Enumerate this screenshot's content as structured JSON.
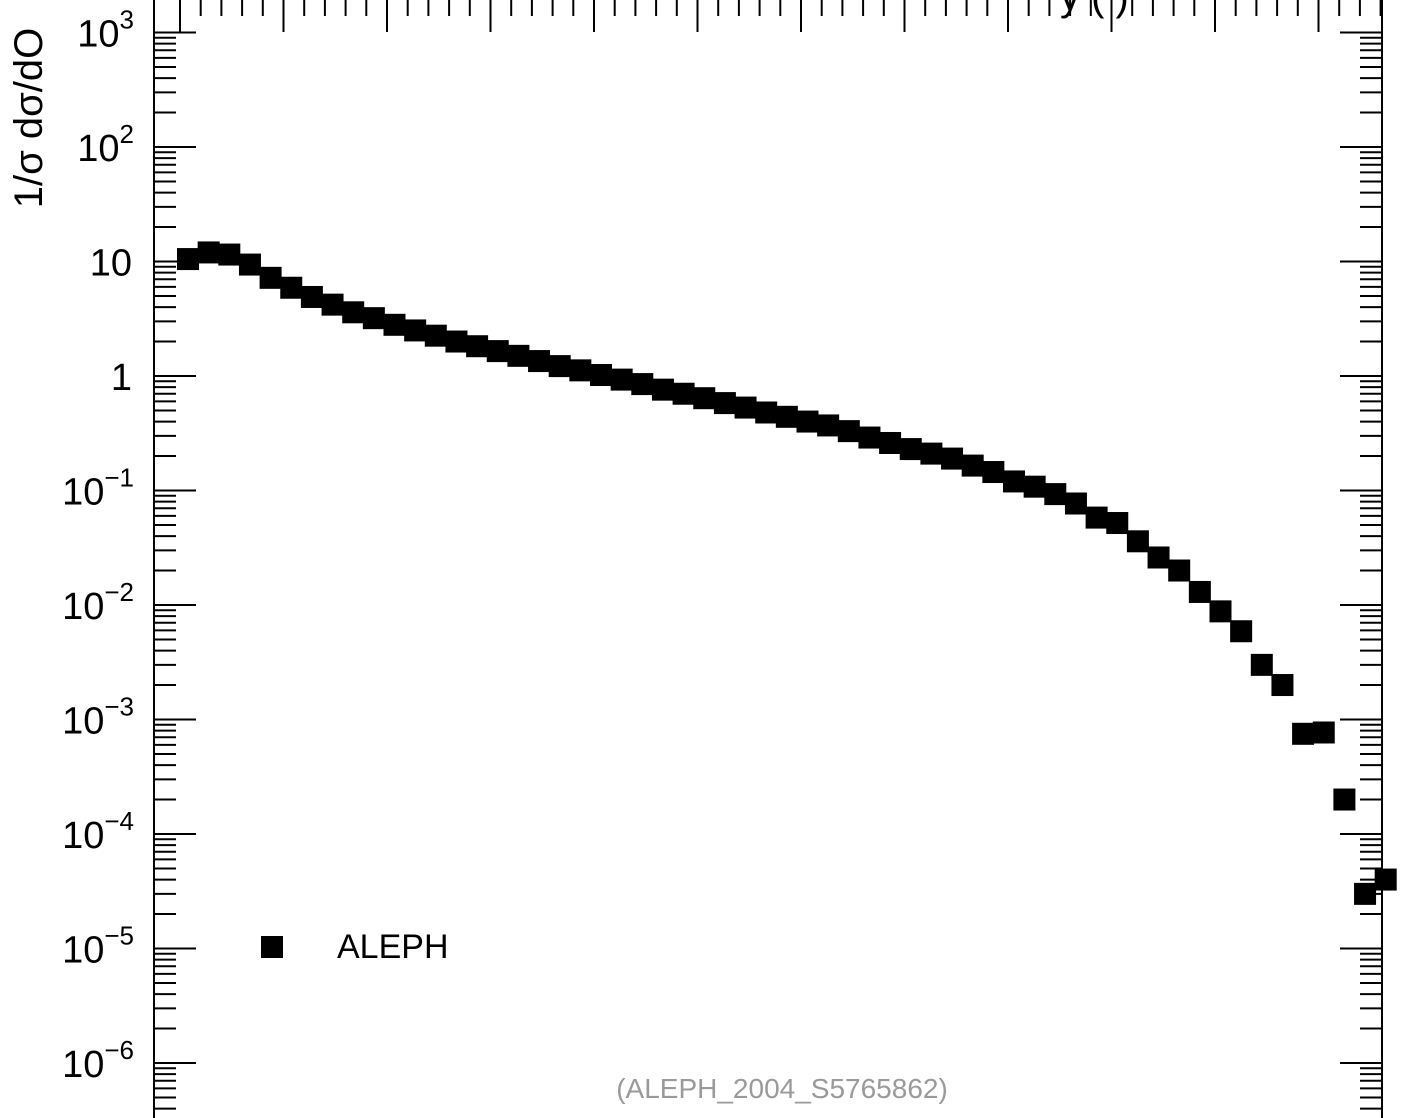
{
  "chart_data": {
    "type": "scatter",
    "title": "",
    "xlabel": "",
    "ylabel": "1/σ  dσ/dO",
    "y_scale": "log",
    "ylim": [
      3e-07,
      1500
    ],
    "x_index_range": [
      0.5,
      58
    ],
    "y_tick_labels": [
      {
        "value": 1000,
        "base": "10",
        "exp": "3"
      },
      {
        "value": 100,
        "base": "10",
        "exp": "2"
      },
      {
        "value": 10,
        "base": "10",
        "exp": ""
      },
      {
        "value": 1,
        "base": "1",
        "exp": ""
      },
      {
        "value": 0.1,
        "base": "10",
        "exp": "−1"
      },
      {
        "value": 0.01,
        "base": "10",
        "exp": "−2"
      },
      {
        "value": 0.001,
        "base": "10",
        "exp": "−3"
      },
      {
        "value": 0.0001,
        "base": "10",
        "exp": "−4"
      },
      {
        "value": 1e-05,
        "base": "10",
        "exp": "−5"
      },
      {
        "value": 1e-06,
        "base": "10",
        "exp": "−6"
      }
    ],
    "series": [
      {
        "name": "ALEPH",
        "marker": "filled-square",
        "color": "#000000",
        "values": [
          10.5,
          12.0,
          11.5,
          9.4,
          7.2,
          5.9,
          4.9,
          4.2,
          3.6,
          3.2,
          2.8,
          2.5,
          2.25,
          2.0,
          1.82,
          1.65,
          1.5,
          1.35,
          1.22,
          1.12,
          1.02,
          0.93,
          0.85,
          0.76,
          0.7,
          0.64,
          0.58,
          0.53,
          0.48,
          0.44,
          0.4,
          0.37,
          0.33,
          0.29,
          0.26,
          0.23,
          0.21,
          0.19,
          0.165,
          0.145,
          0.12,
          0.108,
          0.093,
          0.077,
          0.058,
          0.052,
          0.036,
          0.026,
          0.02,
          0.013,
          0.0088,
          0.0059,
          0.003,
          0.002,
          0.00075,
          0.00077,
          0.0002,
          3e-05,
          4e-05
        ]
      }
    ],
    "legend": {
      "entries": [
        "ALEPH"
      ],
      "position": "bottom-left"
    },
    "annotation": "(ALEPH_2004_S5765862)",
    "top_right_fragment": "y (      )"
  }
}
